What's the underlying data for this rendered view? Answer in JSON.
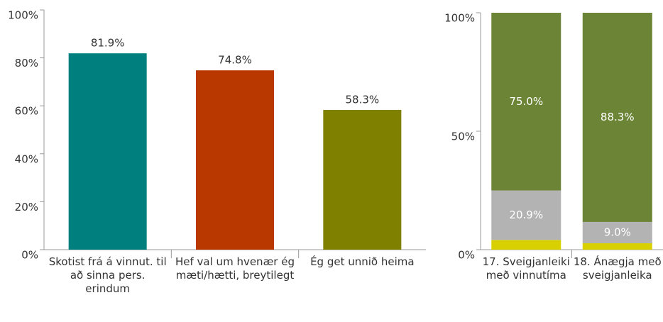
{
  "chart_data": [
    {
      "type": "bar",
      "categories": [
        "Skotist frá á vinnut. til að sinna pers. erindum",
        "Hef val um hvenær ég mæti/hætti, breytilegt",
        "Ég get unnið heima"
      ],
      "values": [
        81.9,
        74.8,
        58.3
      ],
      "value_labels": [
        "81.9%",
        "74.8%",
        "58.3%"
      ],
      "colors": [
        "#007f7f",
        "#b83800",
        "#7f7f00"
      ],
      "ylim": [
        0,
        100
      ],
      "yticks": [
        {
          "value": 0,
          "label": "0%"
        },
        {
          "value": 20,
          "label": "20%"
        },
        {
          "value": 40,
          "label": "40%"
        },
        {
          "value": 60,
          "label": "60%"
        },
        {
          "value": 80,
          "label": "80%"
        },
        {
          "value": 100,
          "label": "100%"
        }
      ]
    },
    {
      "type": "stacked_bar",
      "categories": [
        "17. Sveigjanleiki með vinnutíma",
        "18. Ánægja með sveigjanleika"
      ],
      "series": [
        {
          "color": "#d8d000",
          "values": [
            4.1,
            2.7
          ]
        },
        {
          "color": "#b3b3b3",
          "values": [
            20.9,
            9.0
          ],
          "value_labels": [
            "20.9%",
            "9.0%"
          ]
        },
        {
          "color": "#6b8436",
          "values": [
            75.0,
            88.3
          ],
          "value_labels": [
            "75.0%",
            "88.3%"
          ]
        }
      ],
      "ylim": [
        0,
        100
      ],
      "yticks": [
        {
          "value": 0,
          "label": "0%"
        },
        {
          "value": 50,
          "label": "50%"
        },
        {
          "value": 100,
          "label": "100%"
        }
      ]
    }
  ]
}
